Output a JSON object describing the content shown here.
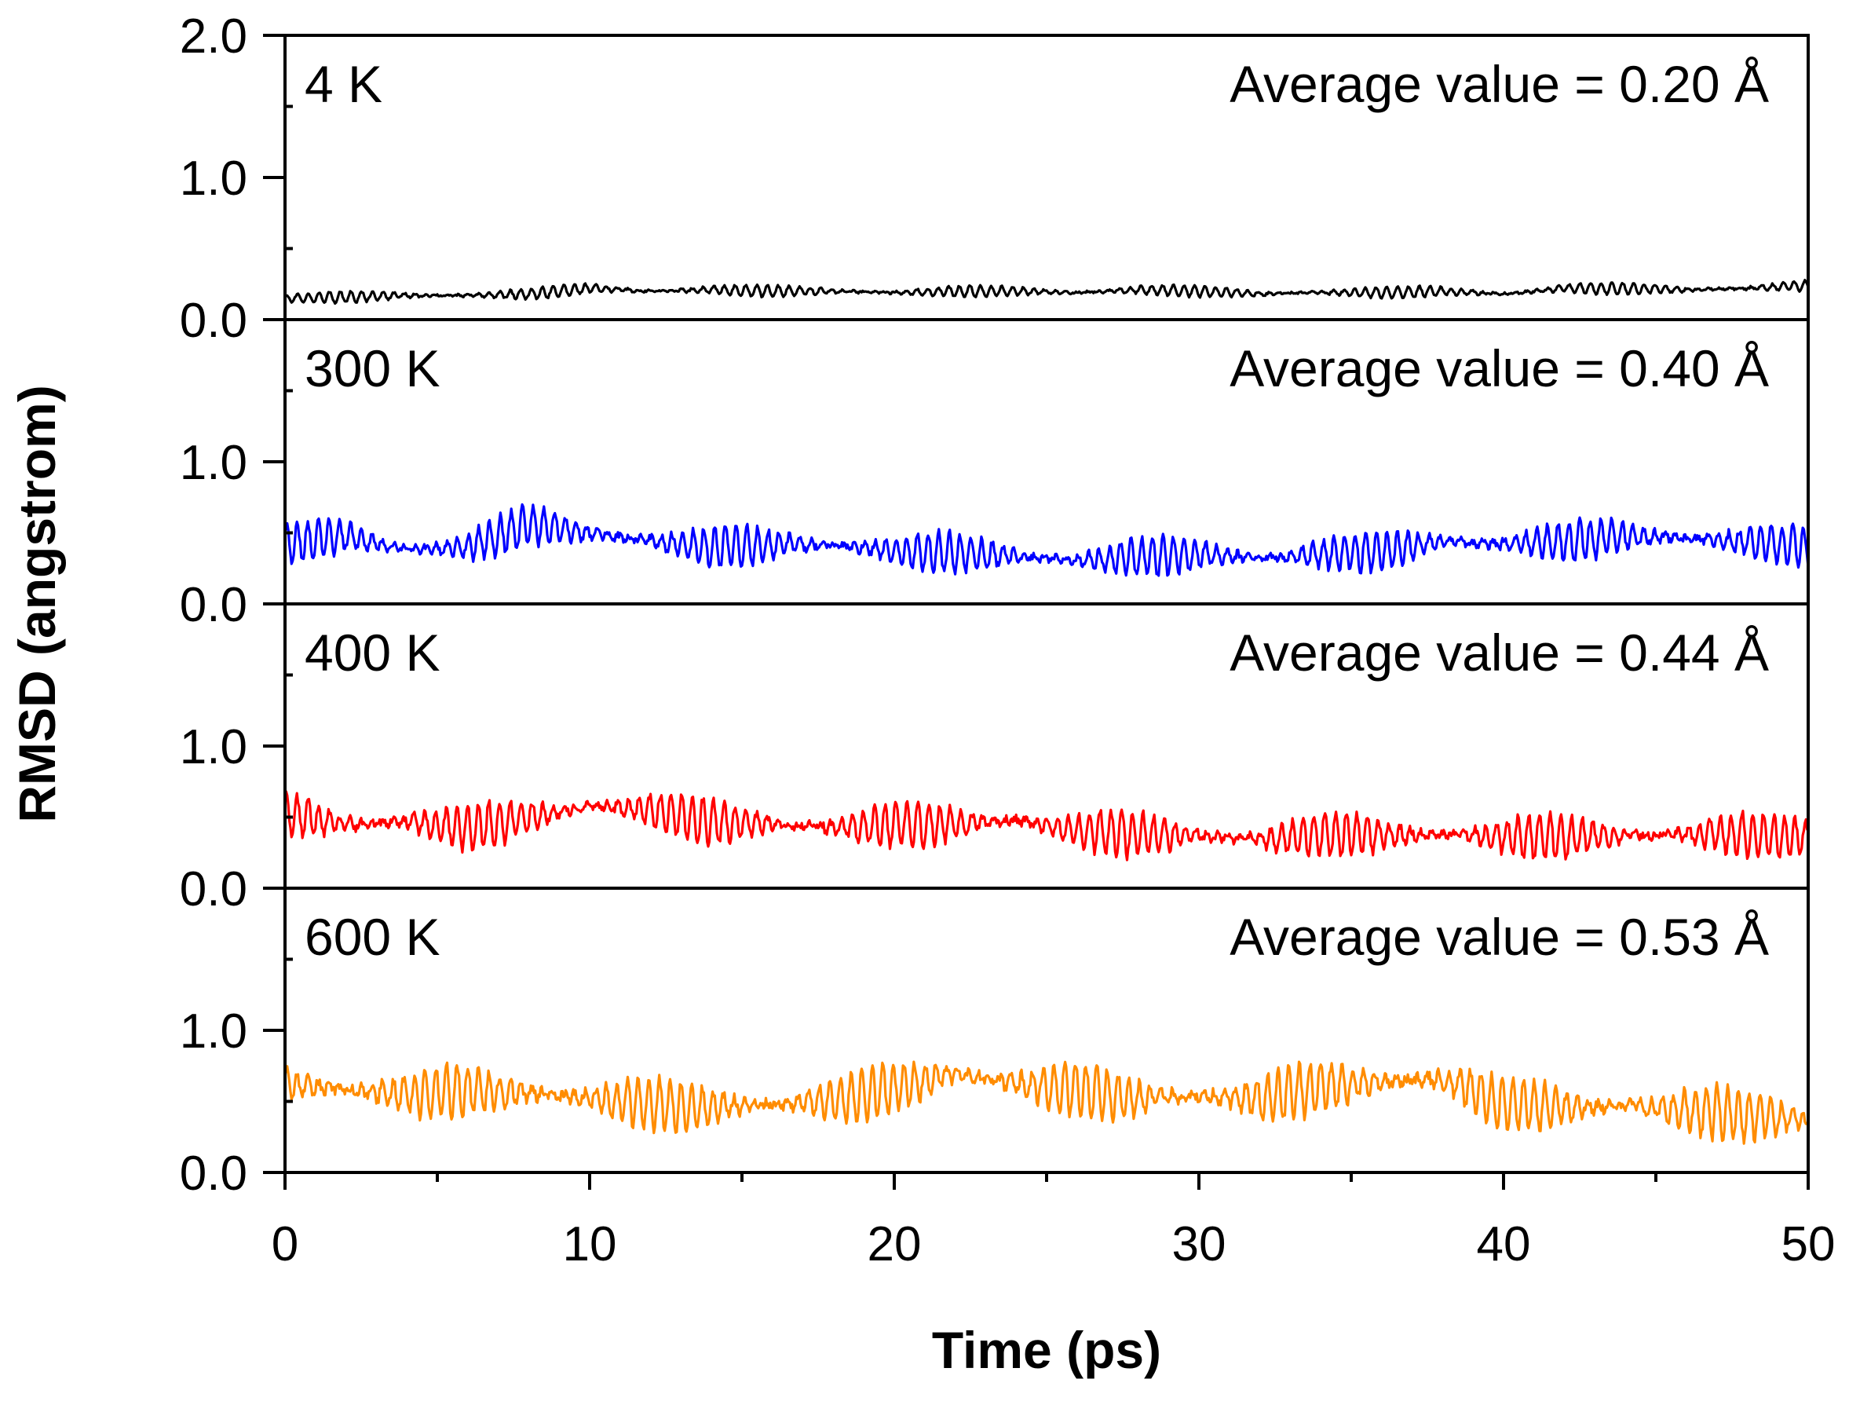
{
  "chart_data": {
    "type": "line",
    "xlabel": "Time (ps)",
    "ylabel": "RMSD (angstrom)",
    "xlim": [
      0,
      50
    ],
    "xticks": [
      0,
      10,
      20,
      30,
      40,
      50
    ],
    "xtick_labels": [
      "0",
      "10",
      "20",
      "30",
      "40",
      "50"
    ],
    "ylim": [
      0,
      2.0
    ],
    "colors": {
      "4 K": "#000000",
      "300 K": "#0000ff",
      "400 K": "#ff0000",
      "600 K": "#ff8c00"
    },
    "panels": [
      {
        "name": "4 K",
        "label": "4 K",
        "average_text": "Average value = 0.20 Å",
        "color": "#000000",
        "yticks": [
          0.0,
          1.0,
          2.0
        ],
        "ytick_labels": [
          "0.0",
          "1.0",
          "2.0"
        ],
        "series": {
          "x": [
            0,
            2,
            4,
            6,
            8,
            10,
            12,
            14,
            16,
            18,
            20,
            22,
            24,
            26,
            28,
            30,
            32,
            34,
            36,
            38,
            40,
            42,
            44,
            46,
            48,
            50
          ],
          "values": [
            0.15,
            0.16,
            0.17,
            0.17,
            0.18,
            0.22,
            0.2,
            0.21,
            0.2,
            0.2,
            0.19,
            0.2,
            0.2,
            0.19,
            0.21,
            0.2,
            0.18,
            0.19,
            0.19,
            0.2,
            0.18,
            0.22,
            0.22,
            0.21,
            0.22,
            0.24
          ]
        },
        "noise_amplitude": 0.04
      },
      {
        "name": "300 K",
        "label": "300 K",
        "average_text": "Average value = 0.40 Å",
        "color": "#0000ff",
        "yticks": [
          0.0,
          1.0
        ],
        "ytick_labels": [
          "0.0",
          "1.0"
        ],
        "series": {
          "x": [
            0,
            2,
            4,
            6,
            8,
            10,
            12,
            14,
            16,
            18,
            20,
            22,
            24,
            26,
            28,
            30,
            32,
            34,
            36,
            38,
            40,
            42,
            44,
            46,
            48,
            50
          ],
          "values": [
            0.42,
            0.48,
            0.38,
            0.4,
            0.56,
            0.5,
            0.44,
            0.4,
            0.42,
            0.42,
            0.37,
            0.36,
            0.34,
            0.3,
            0.33,
            0.35,
            0.32,
            0.35,
            0.37,
            0.44,
            0.42,
            0.44,
            0.48,
            0.46,
            0.44,
            0.4
          ]
        },
        "noise_amplitude": 0.14
      },
      {
        "name": "400 K",
        "label": "400 K",
        "average_text": "Average value = 0.44 Å",
        "color": "#ff0000",
        "yticks": [
          0.0,
          1.0
        ],
        "ytick_labels": [
          "0.0",
          "1.0"
        ],
        "series": {
          "x": [
            0,
            2,
            4,
            6,
            8,
            10,
            12,
            14,
            16,
            18,
            20,
            22,
            24,
            26,
            28,
            30,
            32,
            34,
            36,
            38,
            40,
            42,
            44,
            46,
            48,
            50
          ],
          "values": [
            0.52,
            0.45,
            0.47,
            0.42,
            0.5,
            0.58,
            0.55,
            0.46,
            0.45,
            0.43,
            0.44,
            0.46,
            0.48,
            0.4,
            0.38,
            0.37,
            0.34,
            0.38,
            0.37,
            0.38,
            0.36,
            0.36,
            0.37,
            0.38,
            0.38,
            0.36
          ]
        },
        "noise_amplitude": 0.16
      },
      {
        "name": "600 K",
        "label": "600 K",
        "average_text": "Average value = 0.53 Å",
        "color": "#ff8c00",
        "yticks": [
          0.0,
          1.0
        ],
        "ytick_labels": [
          "0.0",
          "1.0"
        ],
        "series": {
          "x": [
            0,
            2,
            4,
            6,
            8,
            10,
            12,
            14,
            16,
            18,
            20,
            22,
            24,
            26,
            28,
            30,
            32,
            34,
            36,
            38,
            40,
            42,
            44,
            46,
            48,
            50
          ],
          "values": [
            0.62,
            0.58,
            0.55,
            0.58,
            0.56,
            0.52,
            0.48,
            0.46,
            0.48,
            0.5,
            0.6,
            0.7,
            0.62,
            0.58,
            0.52,
            0.54,
            0.52,
            0.6,
            0.64,
            0.66,
            0.48,
            0.46,
            0.47,
            0.44,
            0.4,
            0.37
          ]
        },
        "noise_amplitude": 0.19
      }
    ]
  }
}
